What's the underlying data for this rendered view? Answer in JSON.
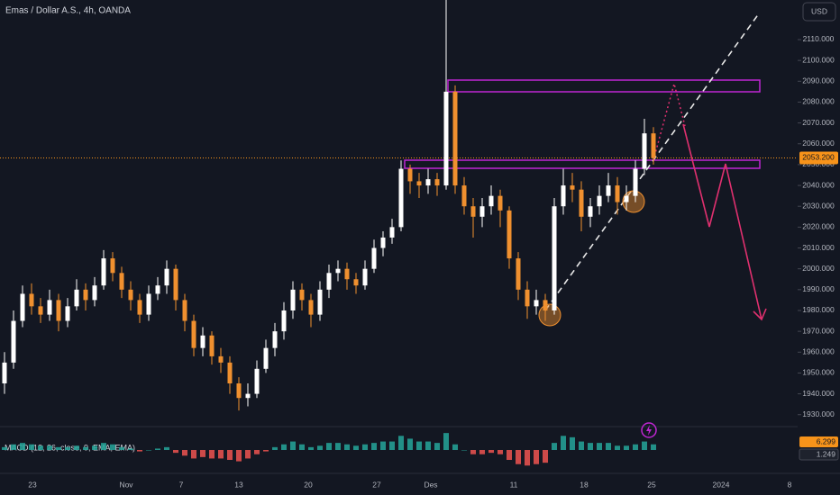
{
  "chart_data": {
    "type": "candlestick",
    "title": "Emas / Dollar A.S., 4h, OANDA",
    "currency_button": "USD",
    "up_color": "#ffffff",
    "down_color": "#f0902f",
    "candles": [
      [
        1945,
        1960,
        1940,
        1955
      ],
      [
        1955,
        1980,
        1952,
        1975
      ],
      [
        1975,
        1992,
        1972,
        1988
      ],
      [
        1988,
        1993,
        1978,
        1982
      ],
      [
        1982,
        1986,
        1974,
        1978
      ],
      [
        1978,
        1990,
        1975,
        1985
      ],
      [
        1985,
        1988,
        1970,
        1975
      ],
      [
        1975,
        1986,
        1972,
        1982
      ],
      [
        1982,
        1995,
        1980,
        1990
      ],
      [
        1990,
        1993,
        1980,
        1985
      ],
      [
        1985,
        1996,
        1982,
        1992
      ],
      [
        1992,
        2009,
        1990,
        2005
      ],
      [
        2005,
        2008,
        1994,
        1998
      ],
      [
        1998,
        2001,
        1986,
        1990
      ],
      [
        1990,
        1994,
        1980,
        1985
      ],
      [
        1985,
        1988,
        1974,
        1978
      ],
      [
        1978,
        1992,
        1975,
        1988
      ],
      [
        1988,
        1996,
        1985,
        1992
      ],
      [
        1992,
        2004,
        1988,
        2000
      ],
      [
        2000,
        2002,
        1980,
        1985
      ],
      [
        1985,
        1988,
        1970,
        1975
      ],
      [
        1975,
        1978,
        1958,
        1962
      ],
      [
        1962,
        1972,
        1958,
        1968
      ],
      [
        1968,
        1970,
        1954,
        1958
      ],
      [
        1958,
        1962,
        1950,
        1955
      ],
      [
        1955,
        1958,
        1940,
        1945
      ],
      [
        1945,
        1948,
        1932,
        1938
      ],
      [
        1938,
        1945,
        1934,
        1940
      ],
      [
        1940,
        1956,
        1938,
        1952
      ],
      [
        1952,
        1966,
        1950,
        1962
      ],
      [
        1962,
        1974,
        1958,
        1970
      ],
      [
        1970,
        1984,
        1966,
        1980
      ],
      [
        1980,
        1994,
        1976,
        1990
      ],
      [
        1990,
        1993,
        1980,
        1985
      ],
      [
        1985,
        1988,
        1972,
        1978
      ],
      [
        1978,
        1994,
        1975,
        1990
      ],
      [
        1990,
        2002,
        1986,
        1998
      ],
      [
        1998,
        2004,
        1994,
        2000
      ],
      [
        2000,
        2003,
        1990,
        1995
      ],
      [
        1995,
        1998,
        1988,
        1992
      ],
      [
        1992,
        2004,
        1990,
        2000
      ],
      [
        2000,
        2014,
        1998,
        2010
      ],
      [
        2010,
        2018,
        2006,
        2015
      ],
      [
        2015,
        2024,
        2012,
        2020
      ],
      [
        2020,
        2052,
        2018,
        2048
      ],
      [
        2048,
        2050,
        2036,
        2042
      ],
      [
        2042,
        2046,
        2034,
        2040
      ],
      [
        2040,
        2048,
        2036,
        2043
      ],
      [
        2043,
        2046,
        2035,
        2040
      ],
      [
        2040,
        2129,
        2038,
        2085
      ],
      [
        2085,
        2088,
        2036,
        2040
      ],
      [
        2040,
        2044,
        2026,
        2030
      ],
      [
        2030,
        2034,
        2015,
        2025
      ],
      [
        2025,
        2034,
        2020,
        2030
      ],
      [
        2030,
        2040,
        2026,
        2035
      ],
      [
        2035,
        2038,
        2020,
        2028
      ],
      [
        2028,
        2030,
        2000,
        2005
      ],
      [
        2005,
        2008,
        1985,
        1990
      ],
      [
        1990,
        1994,
        1976,
        1982
      ],
      [
        1982,
        1990,
        1978,
        1985
      ],
      [
        1985,
        1988,
        1975,
        1980
      ],
      [
        1980,
        2034,
        1978,
        2030
      ],
      [
        2030,
        2048,
        2026,
        2040
      ],
      [
        2040,
        2046,
        2032,
        2038
      ],
      [
        2038,
        2042,
        2018,
        2025
      ],
      [
        2025,
        2034,
        2020,
        2030
      ],
      [
        2030,
        2040,
        2026,
        2035
      ],
      [
        2035,
        2046,
        2032,
        2040
      ],
      [
        2040,
        2044,
        2026,
        2032
      ],
      [
        2032,
        2040,
        2028,
        2035
      ],
      [
        2035,
        2052,
        2032,
        2048
      ],
      [
        2048,
        2072,
        2045,
        2065
      ],
      [
        2065,
        2068,
        2050,
        2053.2
      ]
    ],
    "ylim": [
      1926,
      2129
    ],
    "yticks": [
      {
        "value": 1930,
        "label": "1930.000"
      },
      {
        "value": 1940,
        "label": "1940.000"
      },
      {
        "value": 1950,
        "label": "1950.000"
      },
      {
        "value": 1960,
        "label": "1960.000"
      },
      {
        "value": 1970,
        "label": "1970.000"
      },
      {
        "value": 1980,
        "label": "1980.000"
      },
      {
        "value": 1990,
        "label": "1990.000"
      },
      {
        "value": 2000,
        "label": "2000.000"
      },
      {
        "value": 2010,
        "label": "2010.000"
      },
      {
        "value": 2020,
        "label": "2020.000"
      },
      {
        "value": 2030,
        "label": "2030.000"
      },
      {
        "value": 2040,
        "label": "2040.000"
      },
      {
        "value": 2050,
        "label": "2050.000"
      },
      {
        "value": 2060,
        "label": "2060.000"
      },
      {
        "value": 2070,
        "label": "2070.000"
      },
      {
        "value": 2080,
        "label": "2080.000"
      },
      {
        "value": 2090,
        "label": "2090.000"
      },
      {
        "value": 2100,
        "label": "2100.000"
      },
      {
        "value": 2110,
        "label": "2110.000"
      }
    ],
    "last_price": {
      "value": 2053.2,
      "label": "2053.200",
      "color": "#f7931a"
    },
    "xlabels": [
      "23",
      "Nov",
      "7",
      "13",
      "20",
      "27",
      "Des",
      "11",
      "18",
      "25",
      "2024",
      "8"
    ],
    "macd": {
      "title": "MACD (12, 26, close, 9, EMA, EMA)",
      "ylim": [
        -14,
        14
      ],
      "positive_color": "#26a69a",
      "negative_color": "#ef5350",
      "histogram": [
        2,
        4,
        5,
        4,
        3,
        3,
        2,
        2,
        3,
        2,
        3,
        5,
        4,
        2,
        1,
        -1,
        0,
        1,
        2,
        -2,
        -4,
        -6,
        -5,
        -6,
        -6,
        -7,
        -8,
        -6,
        -3,
        -1,
        2,
        4,
        6,
        4,
        2,
        3,
        5,
        5,
        4,
        3,
        4,
        5,
        6,
        6,
        10,
        8,
        6,
        6,
        5,
        12,
        4,
        0,
        -3,
        -3,
        -2,
        -3,
        -7,
        -10,
        -11,
        -10,
        -9,
        5,
        10,
        9,
        6,
        5,
        5,
        5,
        3,
        3,
        4,
        6,
        4
      ],
      "macd_value": 6.299,
      "signal_value": 1.249
    }
  }
}
